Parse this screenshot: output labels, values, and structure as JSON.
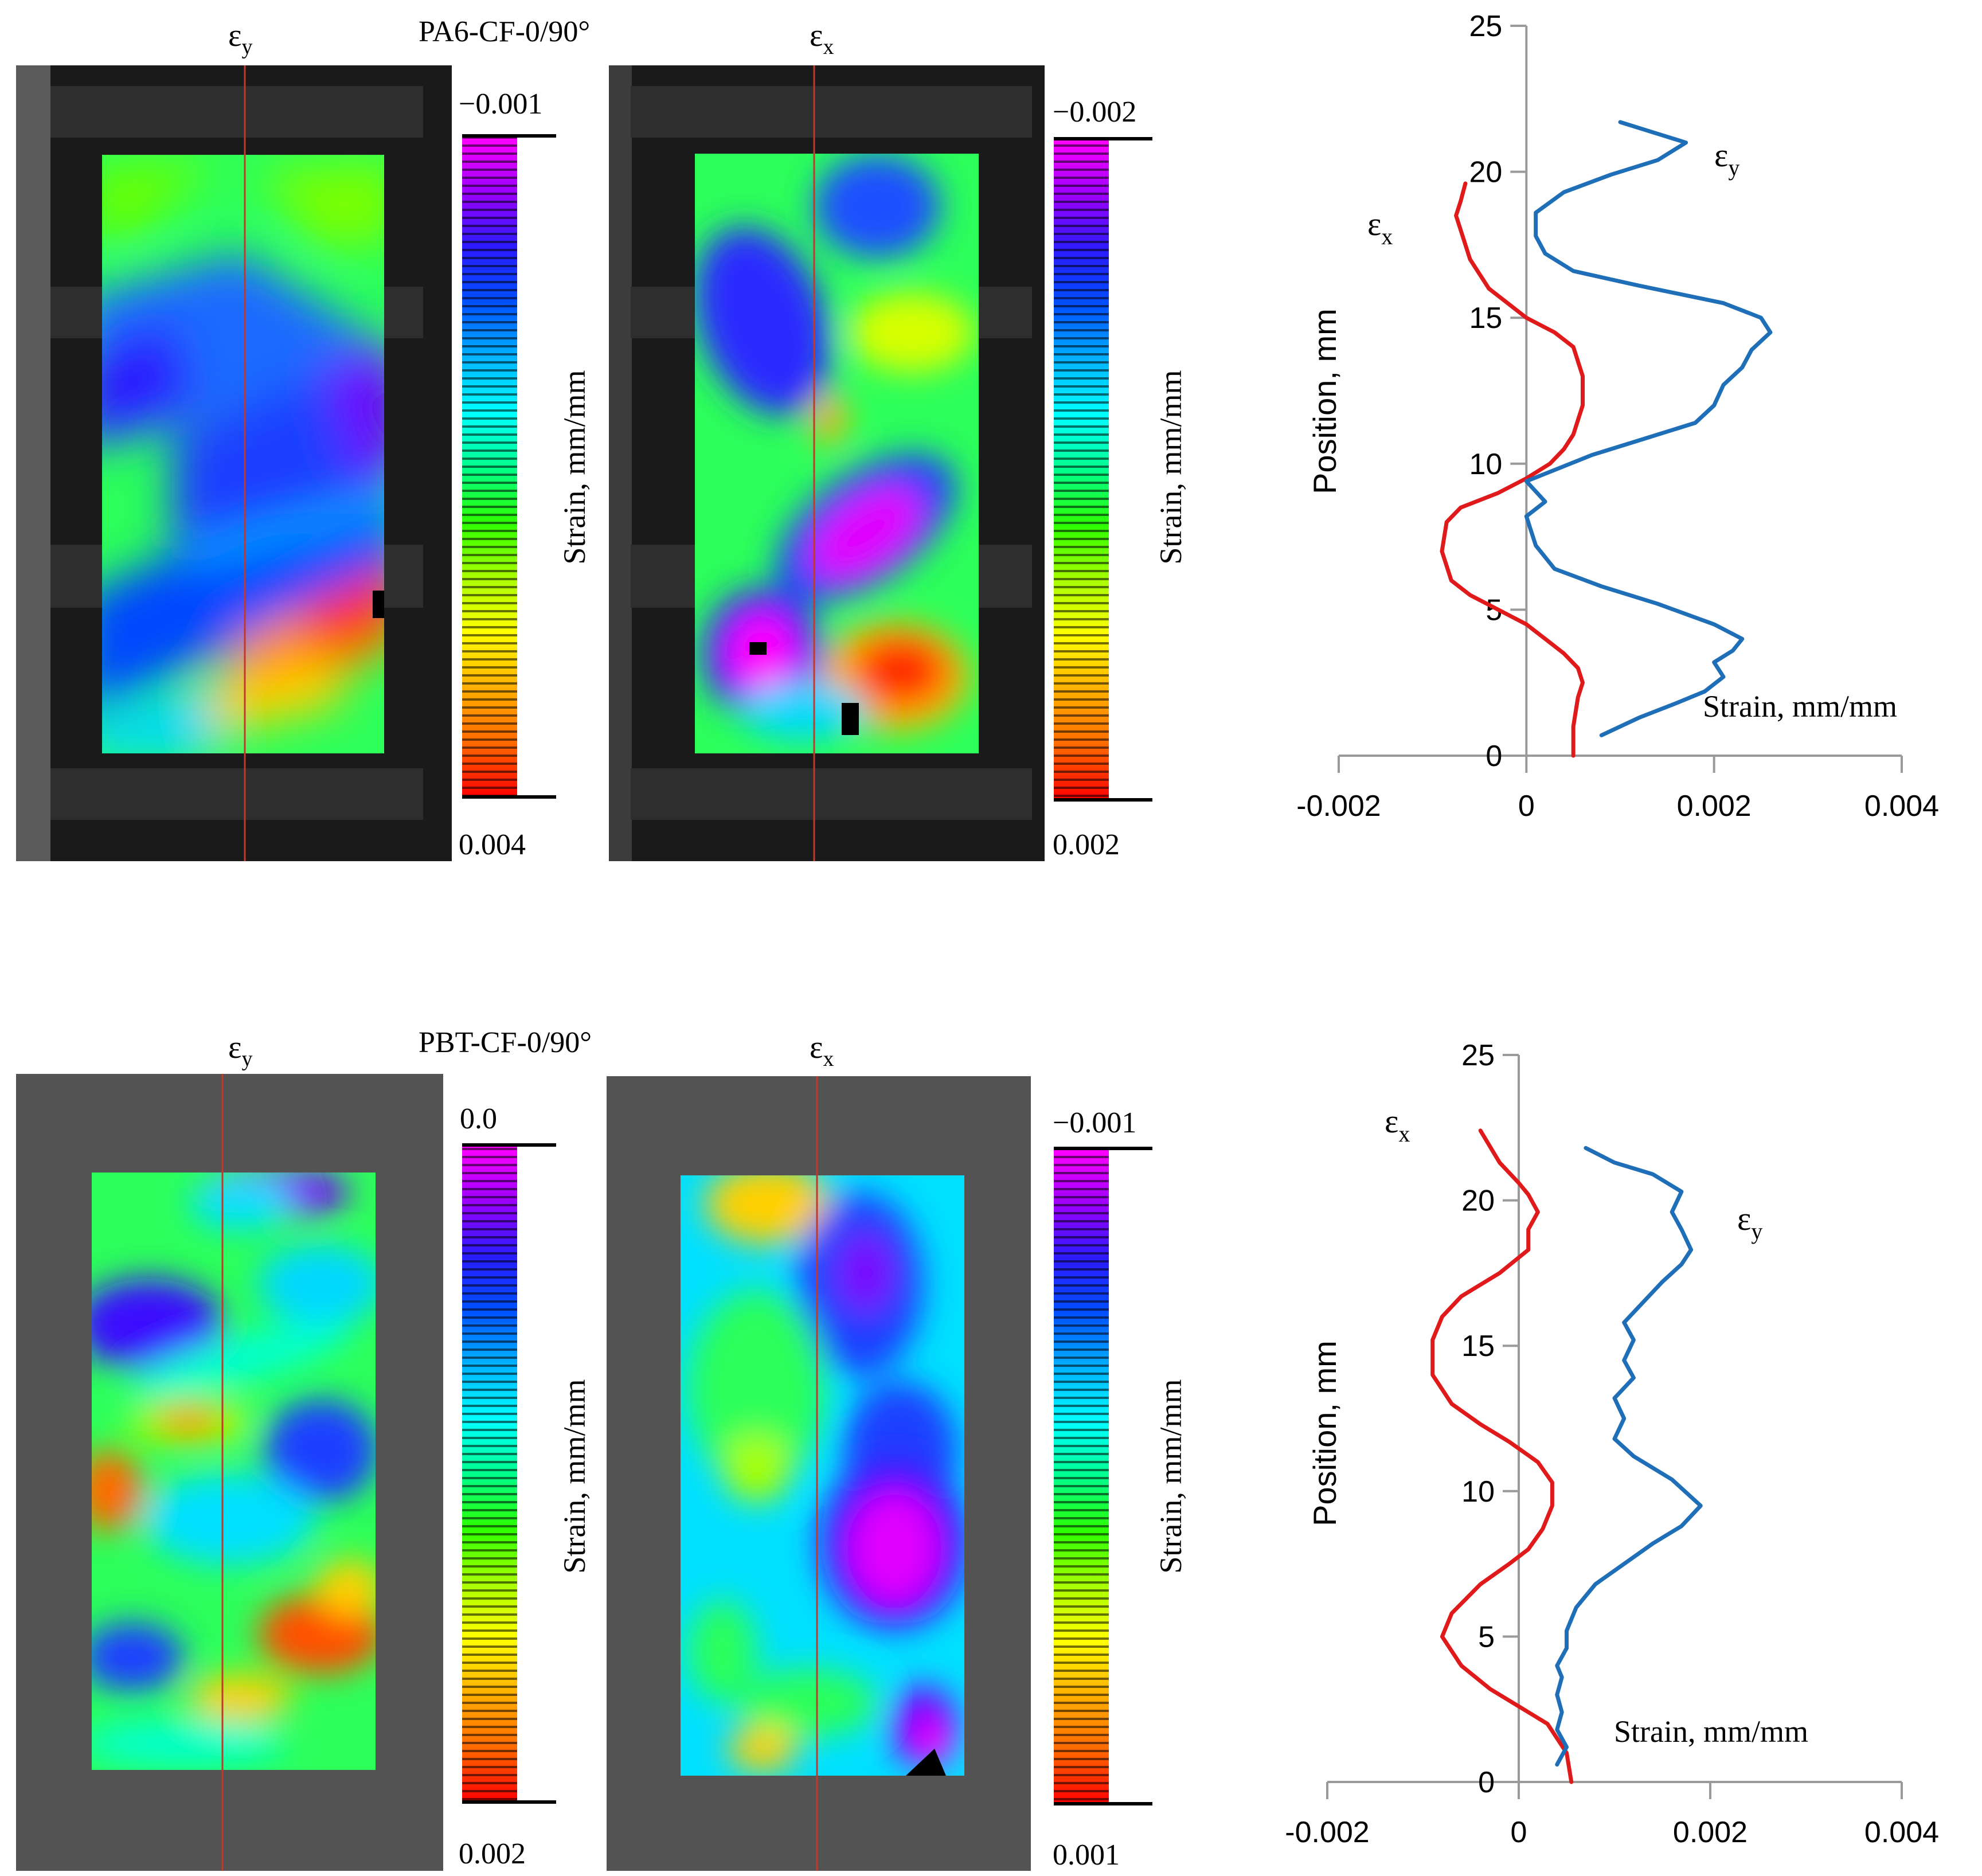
{
  "panels": [
    {
      "title": "PA6-CF-0/90°",
      "left_map": {
        "label_main": "ε",
        "label_sub": "y",
        "colorbar": {
          "top": "−0.001",
          "bottom": "0.004",
          "axis_label": "Strain, mm/mm"
        }
      },
      "right_map": {
        "label_main": "ε",
        "label_sub": "x",
        "colorbar": {
          "top": "−0.002",
          "bottom": "0.002",
          "axis_label": "Strain, mm/mm"
        }
      }
    },
    {
      "title": "PBT-CF-0/90°",
      "left_map": {
        "label_main": "ε",
        "label_sub": "y",
        "colorbar": {
          "top": "0.0",
          "bottom": "0.002",
          "axis_label": "Strain, mm/mm"
        }
      },
      "right_map": {
        "label_main": "ε",
        "label_sub": "x",
        "colorbar": {
          "top": "−0.001",
          "bottom": "0.001",
          "axis_label": "Strain, mm/mm"
        }
      }
    }
  ],
  "colors": {
    "ex": "#e01a1a",
    "ey": "#1f6fb8",
    "axis": "#9a9a9a",
    "colorbar": [
      "#ff00ff",
      "#9b00ff",
      "#2a1bff",
      "#0050ff",
      "#00b4ff",
      "#00ffff",
      "#00ff8c",
      "#2cff00",
      "#a8ff00",
      "#ffff00",
      "#ffb000",
      "#ff6a00",
      "#ff0000"
    ]
  },
  "chart_data": [
    {
      "type": "line",
      "xlabel": "Strain, mm/mm",
      "ylabel": "Position, mm",
      "xlim": [
        -0.002,
        0.004
      ],
      "ylim": [
        0,
        25
      ],
      "xticks": [
        "-0.002",
        "0",
        "0.002",
        "0.004"
      ],
      "yticks": [
        "0",
        "5",
        "10",
        "15",
        "20",
        "25"
      ],
      "series": [
        {
          "name": "εx",
          "name_main": "ε",
          "name_sub": "x",
          "x": [
            0.0005,
            0.0005,
            0.00055,
            0.0006,
            0.00055,
            0.0004,
            0.0002,
            0.0,
            -0.0003,
            -0.0006,
            -0.0008,
            -0.0009,
            -0.00085,
            -0.0007,
            -0.0003,
            0.0,
            0.00025,
            0.0004,
            0.0005,
            0.0006,
            0.0006,
            0.0005,
            0.0003,
            0.0,
            -0.0002,
            -0.0004,
            -0.0006,
            -0.0007,
            -0.00075,
            -0.0007,
            -0.00065
          ],
          "y": [
            0.0,
            1.0,
            2.0,
            2.5,
            3.0,
            3.5,
            4.0,
            4.5,
            5.0,
            5.5,
            6.0,
            7.0,
            8.0,
            8.5,
            9.0,
            9.5,
            10.0,
            10.5,
            11.0,
            12.0,
            13.0,
            14.0,
            14.5,
            15.0,
            15.5,
            16.0,
            17.0,
            18.0,
            18.5,
            19.0,
            19.6
          ]
        },
        {
          "name": "εy",
          "name_main": "ε",
          "name_sub": "y",
          "x": [
            0.0008,
            0.0012,
            0.0016,
            0.0019,
            0.0021,
            0.002,
            0.0022,
            0.0023,
            0.002,
            0.0014,
            0.0008,
            0.0003,
            0.0001,
            0.0,
            0.0002,
            0.0,
            0.0007,
            0.0013,
            0.0018,
            0.002,
            0.0021,
            0.0023,
            0.0024,
            0.0026,
            0.0025,
            0.0021,
            0.0012,
            0.0005,
            0.0002,
            0.0001,
            0.0001,
            0.0004,
            0.0009,
            0.0014,
            0.0017,
            0.0013,
            0.001
          ],
          "y": [
            0.7,
            1.3,
            1.8,
            2.2,
            2.7,
            3.2,
            3.6,
            4.0,
            4.5,
            5.2,
            5.8,
            6.4,
            7.2,
            8.2,
            8.7,
            9.4,
            10.3,
            10.9,
            11.4,
            12.0,
            12.7,
            13.3,
            13.9,
            14.5,
            15.0,
            15.5,
            16.1,
            16.6,
            17.2,
            17.8,
            18.6,
            19.3,
            19.9,
            20.4,
            21.0,
            21.4,
            21.7
          ]
        }
      ]
    },
    {
      "type": "line",
      "xlabel": "Strain, mm/mm",
      "ylabel": "Position, mm",
      "xlim": [
        -0.002,
        0.004
      ],
      "ylim": [
        0,
        25
      ],
      "xticks": [
        "-0.002",
        "0",
        "0.002",
        "0.004"
      ],
      "yticks": [
        "0",
        "5",
        "10",
        "15",
        "20",
        "25"
      ],
      "series": [
        {
          "name": "εx",
          "name_main": "ε",
          "name_sub": "x",
          "x": [
            0.00055,
            0.0005,
            0.0003,
            0.0,
            -0.0003,
            -0.0006,
            -0.0008,
            -0.0007,
            -0.0004,
            -0.0001,
            0.0001,
            0.00025,
            0.00035,
            0.00035,
            0.0002,
            -0.0001,
            -0.0004,
            -0.0007,
            -0.0009,
            -0.0009,
            -0.0008,
            -0.0006,
            -0.0002,
            0.0001,
            0.0001,
            0.0002,
            0.0001,
            0.0,
            -0.0002,
            -0.0004
          ],
          "y": [
            0.0,
            1.0,
            2.0,
            2.6,
            3.2,
            4.0,
            5.0,
            5.8,
            6.8,
            7.5,
            8.0,
            8.7,
            9.5,
            10.3,
            11.0,
            11.7,
            12.3,
            13.0,
            14.0,
            15.2,
            16.0,
            16.7,
            17.5,
            18.3,
            19.0,
            19.6,
            20.2,
            20.6,
            21.3,
            22.4
          ]
        },
        {
          "name": "εy",
          "name_main": "ε",
          "name_sub": "y",
          "x": [
            0.0004,
            0.0005,
            0.0004,
            0.00045,
            0.0004,
            0.00045,
            0.0004,
            0.0005,
            0.0005,
            0.0006,
            0.0008,
            0.0011,
            0.0014,
            0.0017,
            0.0019,
            0.0016,
            0.0012,
            0.001,
            0.0011,
            0.001,
            0.0012,
            0.0011,
            0.0012,
            0.0011,
            0.0013,
            0.0015,
            0.0017,
            0.0018,
            0.0017,
            0.0016,
            0.0017,
            0.0014,
            0.001,
            0.0007
          ],
          "y": [
            0.6,
            1.2,
            1.8,
            2.4,
            3.0,
            3.6,
            4.0,
            4.6,
            5.2,
            6.0,
            6.8,
            7.5,
            8.2,
            8.8,
            9.5,
            10.4,
            11.2,
            11.8,
            12.5,
            13.2,
            13.9,
            14.5,
            15.2,
            15.8,
            16.5,
            17.2,
            17.8,
            18.3,
            19.0,
            19.6,
            20.3,
            20.9,
            21.3,
            21.8
          ]
        }
      ]
    }
  ]
}
